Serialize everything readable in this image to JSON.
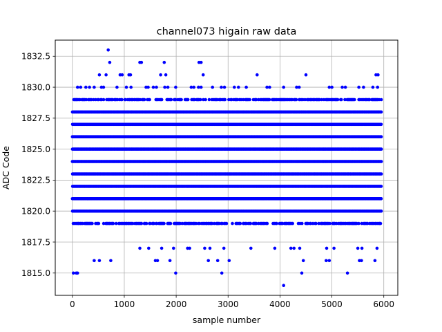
{
  "chart_data": {
    "type": "scatter",
    "title": "channel073 higain raw data",
    "xlabel": "sample number",
    "ylabel": "ADC Code",
    "xlim": [
      -330,
      6270
    ],
    "ylim": [
      1813.2,
      1833.8
    ],
    "xticks": [
      0,
      1000,
      2000,
      3000,
      4000,
      5000,
      6000
    ],
    "yticks": [
      1815.0,
      1817.5,
      1820.0,
      1822.5,
      1825.0,
      1827.5,
      1830.0,
      1832.5
    ],
    "xtick_labels": [
      "0",
      "1000",
      "2000",
      "3000",
      "4000",
      "5000",
      "6000"
    ],
    "ytick_labels": [
      "1815.0",
      "1817.5",
      "1820.0",
      "1822.5",
      "1825.0",
      "1827.5",
      "1830.0",
      "1832.5"
    ],
    "grid": true,
    "marker_color": "#0000ff",
    "x_range": [
      0,
      5950
    ],
    "dense_levels": [
      1820,
      1821,
      1822,
      1823,
      1824,
      1825,
      1826,
      1827,
      1828
    ],
    "medium_levels": [
      1819,
      1829
    ],
    "sparse_points": [
      [
        20,
        1815
      ],
      [
        75,
        1815
      ],
      [
        100,
        1815
      ],
      [
        420,
        1816
      ],
      [
        520,
        1816
      ],
      [
        740,
        1816
      ],
      [
        1600,
        1816
      ],
      [
        1640,
        1816
      ],
      [
        1880,
        1816
      ],
      [
        2620,
        1816
      ],
      [
        2800,
        1816
      ],
      [
        3020,
        1816
      ],
      [
        4450,
        1816
      ],
      [
        4890,
        1816
      ],
      [
        4950,
        1816
      ],
      [
        5530,
        1816
      ],
      [
        5570,
        1816
      ],
      [
        5830,
        1816
      ],
      [
        1300,
        1817
      ],
      [
        1470,
        1817
      ],
      [
        1720,
        1817
      ],
      [
        1950,
        1817
      ],
      [
        2220,
        1817
      ],
      [
        2260,
        1817
      ],
      [
        2550,
        1817
      ],
      [
        2650,
        1817
      ],
      [
        2920,
        1817
      ],
      [
        3440,
        1817
      ],
      [
        3900,
        1817
      ],
      [
        4210,
        1817
      ],
      [
        4270,
        1817
      ],
      [
        4380,
        1817
      ],
      [
        4900,
        1817
      ],
      [
        5040,
        1817
      ],
      [
        5500,
        1817
      ],
      [
        5580,
        1817
      ],
      [
        5870,
        1817
      ],
      [
        1990,
        1815
      ],
      [
        2880,
        1815
      ],
      [
        4070,
        1814
      ],
      [
        4420,
        1815
      ],
      [
        5300,
        1815
      ],
      [
        690,
        1833
      ],
      [
        720,
        1832
      ],
      [
        1300,
        1832
      ],
      [
        1330,
        1832
      ],
      [
        1770,
        1832
      ],
      [
        2440,
        1832
      ],
      [
        2480,
        1832
      ],
      [
        520,
        1831
      ],
      [
        650,
        1831
      ],
      [
        920,
        1831
      ],
      [
        960,
        1831
      ],
      [
        1090,
        1831
      ],
      [
        1120,
        1831
      ],
      [
        1700,
        1831
      ],
      [
        1800,
        1831
      ],
      [
        2520,
        1831
      ],
      [
        3560,
        1831
      ],
      [
        4500,
        1831
      ],
      [
        5850,
        1831
      ],
      [
        5890,
        1831
      ],
      [
        100,
        1830
      ],
      [
        160,
        1830
      ],
      [
        260,
        1830
      ],
      [
        330,
        1830
      ],
      [
        420,
        1830
      ],
      [
        560,
        1830
      ],
      [
        600,
        1830
      ],
      [
        860,
        1830
      ],
      [
        1040,
        1830
      ],
      [
        1130,
        1830
      ],
      [
        1420,
        1830
      ],
      [
        1460,
        1830
      ],
      [
        1560,
        1830
      ],
      [
        1620,
        1830
      ],
      [
        1780,
        1830
      ],
      [
        1840,
        1830
      ],
      [
        1990,
        1830
      ],
      [
        2290,
        1830
      ],
      [
        2340,
        1830
      ],
      [
        2430,
        1830
      ],
      [
        2480,
        1830
      ],
      [
        2700,
        1830
      ],
      [
        2870,
        1830
      ],
      [
        2930,
        1830
      ],
      [
        3120,
        1830
      ],
      [
        3200,
        1830
      ],
      [
        3350,
        1830
      ],
      [
        3750,
        1830
      ],
      [
        3800,
        1830
      ],
      [
        4070,
        1830
      ],
      [
        4320,
        1830
      ],
      [
        4370,
        1830
      ],
      [
        4950,
        1830
      ],
      [
        5000,
        1830
      ],
      [
        5200,
        1830
      ],
      [
        5260,
        1830
      ],
      [
        5520,
        1830
      ],
      [
        5610,
        1830
      ],
      [
        5790,
        1830
      ],
      [
        5880,
        1830
      ]
    ]
  }
}
